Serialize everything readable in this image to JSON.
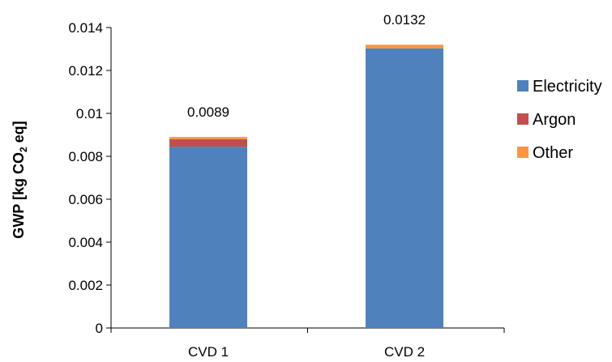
{
  "chart_data": {
    "type": "bar",
    "stacked": true,
    "categories": [
      "CVD 1",
      "CVD 2"
    ],
    "series": [
      {
        "name": "Electricity",
        "color": "#4F81BD",
        "values": [
          0.00845,
          0.01303
        ]
      },
      {
        "name": "Argon",
        "color": "#C0504D",
        "values": [
          0.00035,
          0.0
        ]
      },
      {
        "name": "Other",
        "color": "#F79646",
        "values": [
          0.0001,
          0.00017
        ]
      }
    ],
    "totals": [
      0.0089,
      0.0132
    ],
    "total_labels": [
      "0.0089",
      "0.0132"
    ],
    "ylabel": {
      "prefix": "GWP [kg CO",
      "subscript": "2",
      "suffix": " eq]"
    },
    "ylim": [
      0,
      0.014
    ],
    "yticks": [
      0,
      0.002,
      0.004,
      0.006,
      0.008,
      0.01,
      0.012,
      0.014
    ],
    "ytick_labels": [
      "0",
      "0.002",
      "0.004",
      "0.006",
      "0.008",
      "0.01",
      "0.012",
      "0.014"
    ],
    "grid": false,
    "legend_position": "right"
  }
}
